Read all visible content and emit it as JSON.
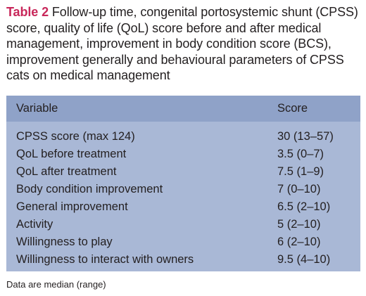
{
  "caption": {
    "label": "Table 2",
    "text": "Follow-up time, congenital portosystemic shunt (CPSS) score, quality of life (QoL) score before and after medical management, improvement in body condition score (BCS), improvement generally and behavioural parameters of CPSS cats on medical management"
  },
  "table": {
    "headers": [
      "Variable",
      "Score"
    ],
    "rows": [
      [
        "CPSS score (max 124)",
        "30 (13–57)"
      ],
      [
        "QoL before treatment",
        "3.5 (0–7)"
      ],
      [
        "QoL after treatment",
        "7.5 (1–9)"
      ],
      [
        "Body condition improvement",
        "7 (0–10)"
      ],
      [
        "General improvement",
        "6.5 (2–10)"
      ],
      [
        "Activity",
        "5 (2–10)"
      ],
      [
        "Willingness to play",
        "6 (2–10)"
      ],
      [
        "Willingness to interact with owners",
        "9.5 (4–10)"
      ]
    ]
  },
  "footnote": "Data are median (range)"
}
